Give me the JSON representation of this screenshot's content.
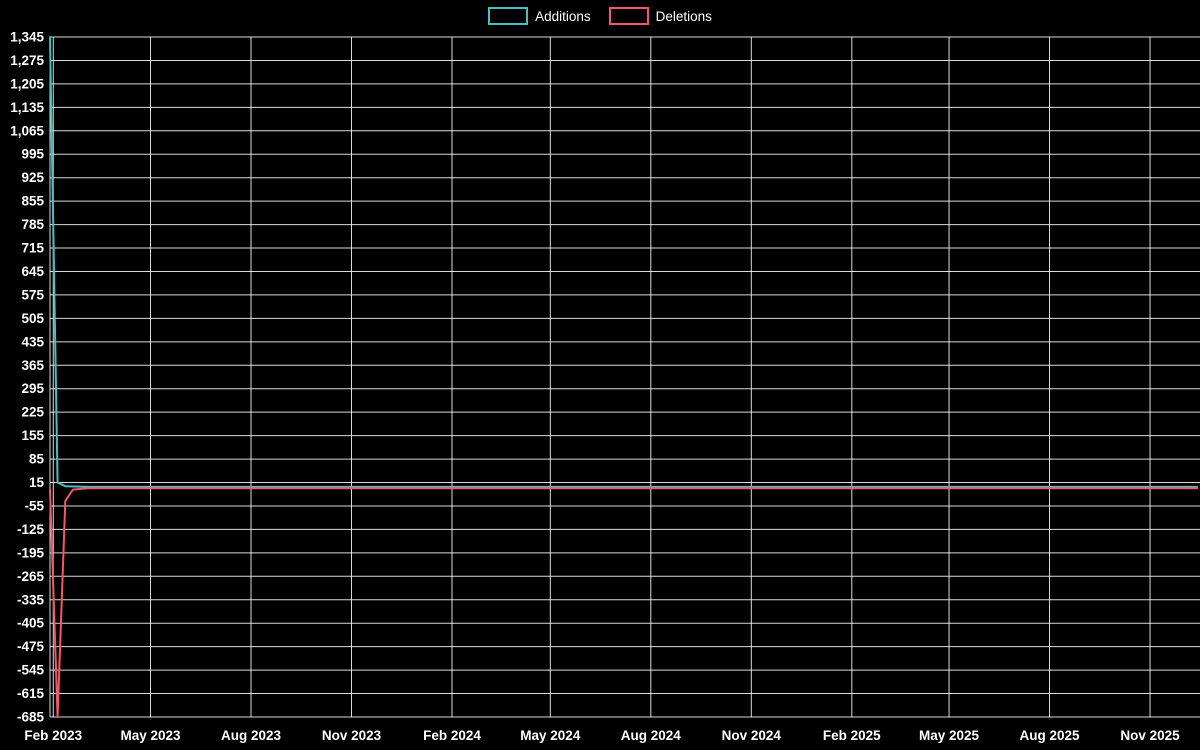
{
  "page": {
    "background": "#000000",
    "text_color": "#ffffff"
  },
  "legend": {
    "items": [
      {
        "label": "Additions",
        "color": "#45c1c1"
      },
      {
        "label": "Deletions",
        "color": "#f4566a"
      }
    ]
  },
  "chart_data": {
    "type": "line",
    "title": "",
    "xlabel": "",
    "ylabel": "",
    "background": "#000000",
    "grid": true,
    "grid_color": "rgba(255,255,255,0.85)",
    "label_color": "#ffffff",
    "legend_position": "top-center",
    "x_domain": [
      "2023-01-29",
      "2025-12-14"
    ],
    "y_domain": [
      -685,
      1345
    ],
    "y_tick_step": 70,
    "y_ticks": [
      {
        "value": 1345,
        "label": "1,345"
      },
      {
        "value": 1275,
        "label": "1,275"
      },
      {
        "value": 1205,
        "label": "1,205"
      },
      {
        "value": 1135,
        "label": "1,135"
      },
      {
        "value": 1065,
        "label": "1,065"
      },
      {
        "value": 995,
        "label": "995"
      },
      {
        "value": 925,
        "label": "925"
      },
      {
        "value": 855,
        "label": "855"
      },
      {
        "value": 785,
        "label": "785"
      },
      {
        "value": 715,
        "label": "715"
      },
      {
        "value": 645,
        "label": "645"
      },
      {
        "value": 575,
        "label": "575"
      },
      {
        "value": 505,
        "label": "505"
      },
      {
        "value": 435,
        "label": "435"
      },
      {
        "value": 365,
        "label": "365"
      },
      {
        "value": 295,
        "label": "295"
      },
      {
        "value": 225,
        "label": "225"
      },
      {
        "value": 155,
        "label": "155"
      },
      {
        "value": 85,
        "label": "85"
      },
      {
        "value": 15,
        "label": "15"
      },
      {
        "value": -55,
        "label": "-55"
      },
      {
        "value": -125,
        "label": "-125"
      },
      {
        "value": -195,
        "label": "-195"
      },
      {
        "value": -265,
        "label": "-265"
      },
      {
        "value": -335,
        "label": "-335"
      },
      {
        "value": -405,
        "label": "-405"
      },
      {
        "value": -475,
        "label": "-475"
      },
      {
        "value": -545,
        "label": "-545"
      },
      {
        "value": -615,
        "label": "-615"
      },
      {
        "value": -685,
        "label": "-685"
      }
    ],
    "x_ticks": [
      {
        "date": "2023-02-01",
        "label": "Feb 2023"
      },
      {
        "date": "2023-05-01",
        "label": "May 2023"
      },
      {
        "date": "2023-08-01",
        "label": "Aug 2023"
      },
      {
        "date": "2023-11-01",
        "label": "Nov 2023"
      },
      {
        "date": "2024-02-01",
        "label": "Feb 2024"
      },
      {
        "date": "2024-05-01",
        "label": "May 2024"
      },
      {
        "date": "2024-08-01",
        "label": "Aug 2024"
      },
      {
        "date": "2024-11-01",
        "label": "Nov 2024"
      },
      {
        "date": "2025-02-01",
        "label": "Feb 2025"
      },
      {
        "date": "2025-05-01",
        "label": "May 2025"
      },
      {
        "date": "2025-08-01",
        "label": "Aug 2025"
      },
      {
        "date": "2025-11-01",
        "label": "Nov 2025"
      }
    ],
    "series": [
      {
        "name": "Additions",
        "color": "#45c1c1",
        "points": [
          [
            "2023-01-29",
            1345
          ],
          [
            "2023-02-05",
            15
          ],
          [
            "2023-02-12",
            4
          ],
          [
            "2023-03-05",
            2
          ],
          [
            "2025-12-14",
            2
          ]
        ]
      },
      {
        "name": "Deletions",
        "color": "#f4566a",
        "points": [
          [
            "2023-01-29",
            -5
          ],
          [
            "2023-02-05",
            -685
          ],
          [
            "2023-02-12",
            -40
          ],
          [
            "2023-02-19",
            -6
          ],
          [
            "2023-03-05",
            -2
          ],
          [
            "2025-12-14",
            -2
          ]
        ]
      }
    ]
  }
}
